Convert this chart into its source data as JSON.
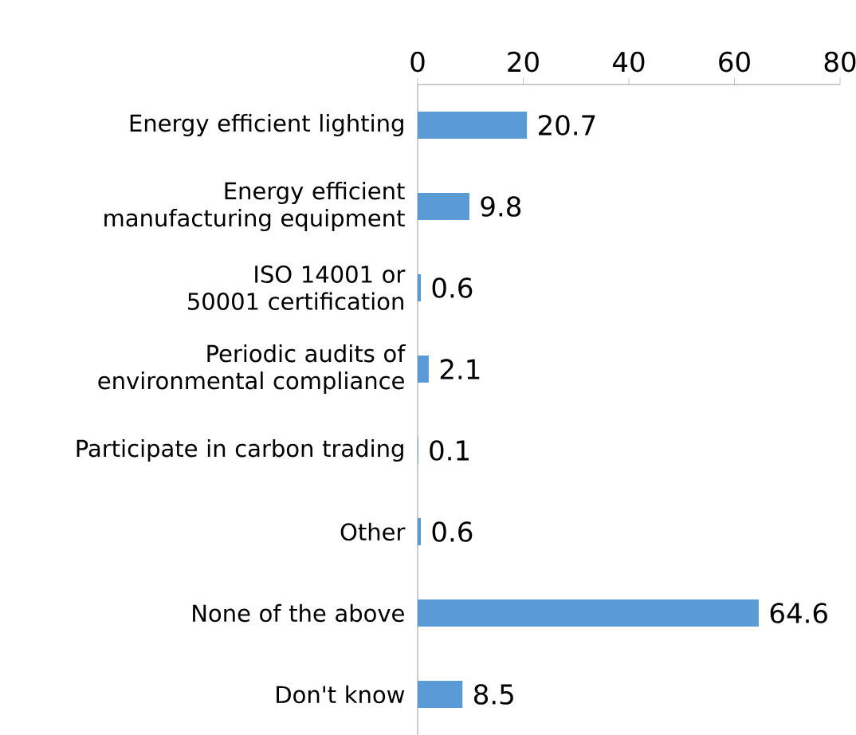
{
  "chart_data": {
    "type": "bar",
    "orientation": "horizontal",
    "categories": [
      "Energy efficient lighting",
      "Energy efficient manufacturing equipment",
      "ISO 14001 or 50001 certification",
      "Periodic audits of environmental compliance",
      "Participate in carbon trading",
      "Other",
      "None of the above",
      "Don't know"
    ],
    "values": [
      20.7,
      9.8,
      0.6,
      2.1,
      0.1,
      0.6,
      64.6,
      8.5
    ],
    "color": "#5b9bd5",
    "data_labels": true,
    "grid": false,
    "xlim": [
      0,
      80
    ],
    "xticks": [
      0,
      20,
      40,
      60,
      80
    ]
  }
}
